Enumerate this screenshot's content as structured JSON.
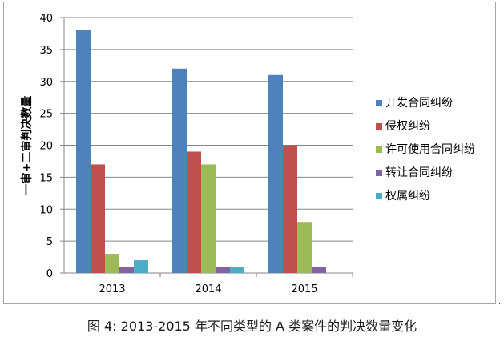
{
  "chart_data": {
    "type": "bar",
    "categories": [
      "2013",
      "2014",
      "2015"
    ],
    "series": [
      {
        "name": "开发合同纠纷",
        "values": [
          38,
          32,
          31
        ],
        "color": "#4f81bd"
      },
      {
        "name": "侵权纠纷",
        "values": [
          17,
          19,
          20
        ],
        "color": "#c0504d"
      },
      {
        "name": "许可使用合同纠纷",
        "values": [
          3,
          17,
          8
        ],
        "color": "#9bbb59"
      },
      {
        "name": "转让合同纠纷",
        "values": [
          1,
          1,
          1
        ],
        "color": "#8064a2"
      },
      {
        "name": "权属纠纷",
        "values": [
          2,
          1,
          0
        ],
        "color": "#4bacc6"
      }
    ],
    "ylabel": "一审+二审判决数量",
    "xlabel": "",
    "ylim": [
      0,
      40
    ],
    "yticks": [
      0,
      5,
      10,
      15,
      20,
      25,
      30,
      35,
      40
    ],
    "grid": true,
    "legend": "right"
  },
  "caption": "图 4: 2013-2015 年不同类型的 A 类案件的判决数量变化",
  "trailing_mark": "."
}
